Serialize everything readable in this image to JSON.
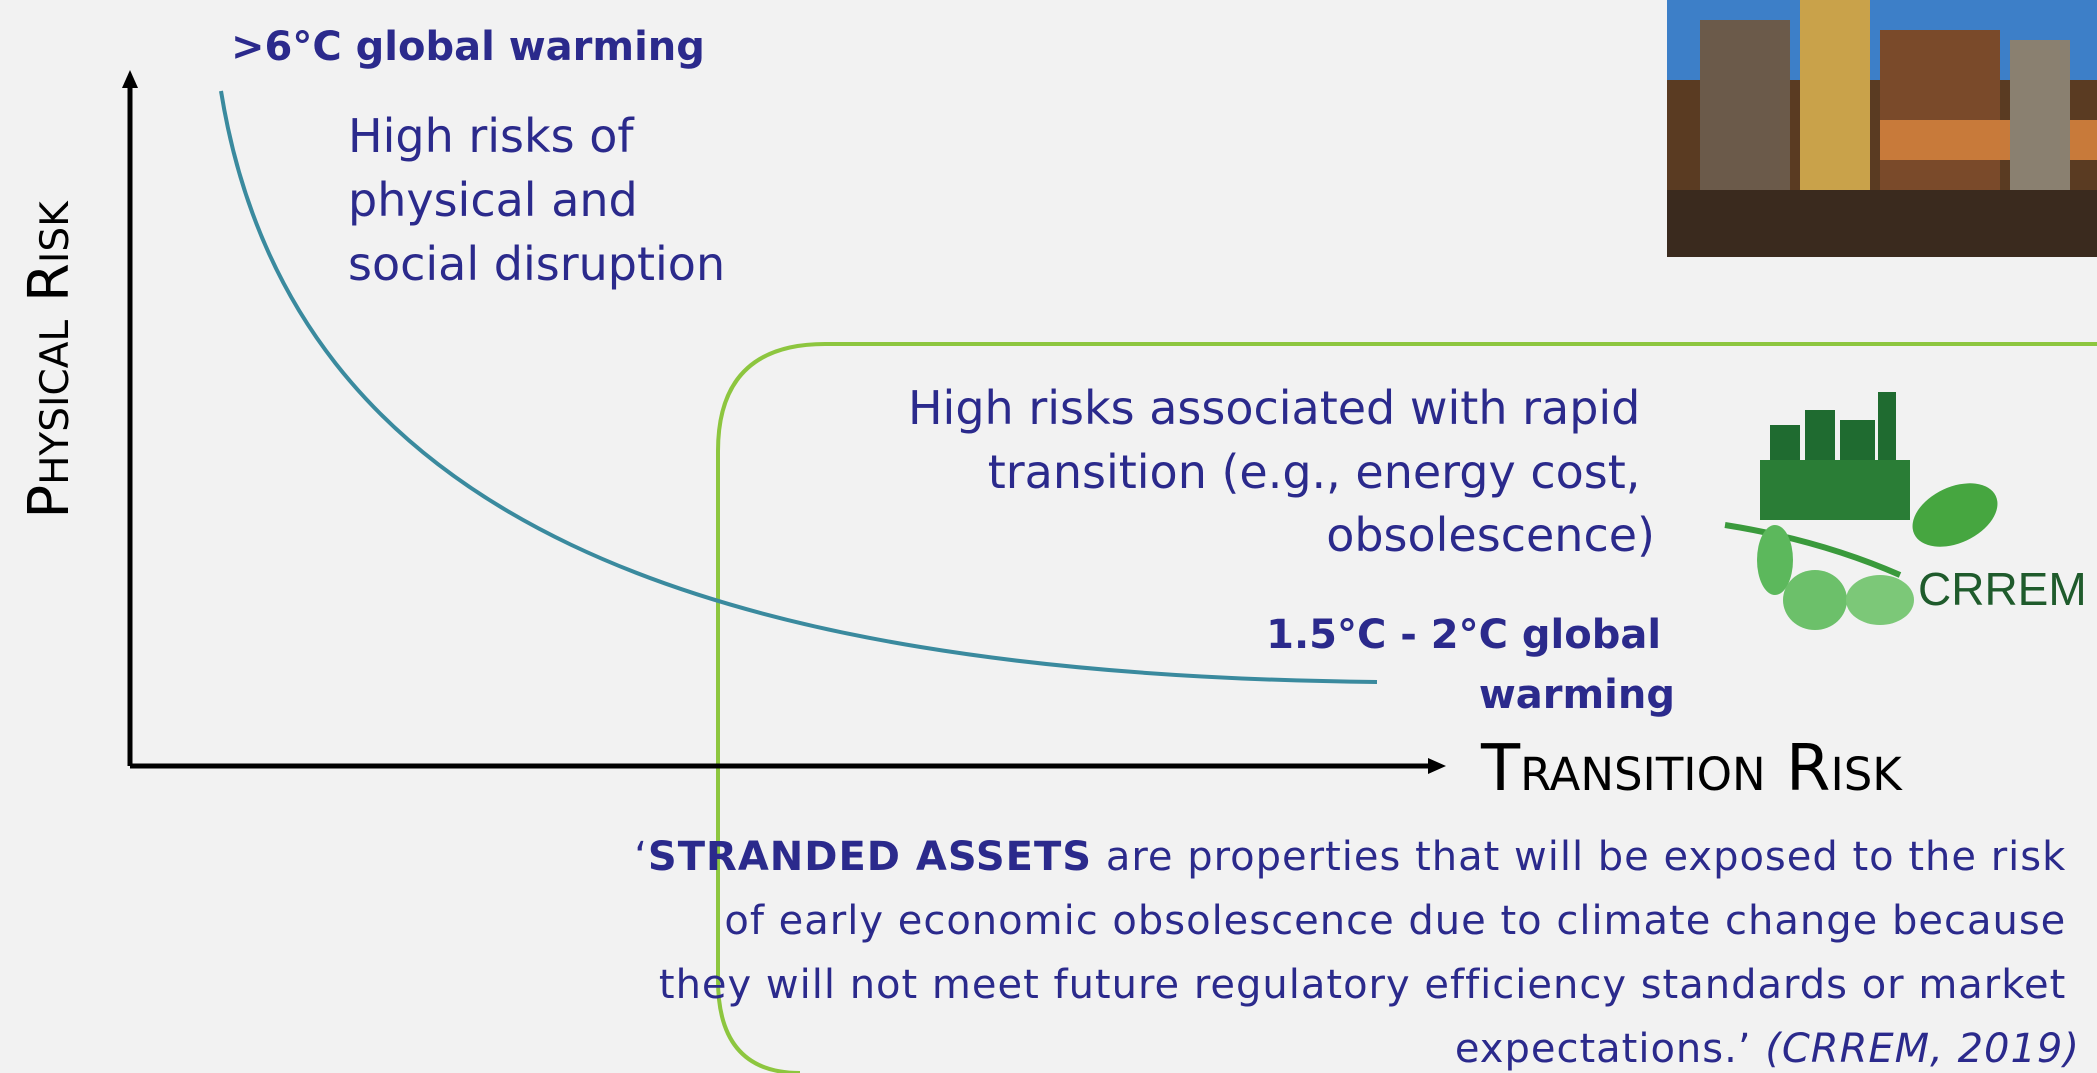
{
  "top_label": ">6°C global warming",
  "top_note": {
    "lines": [
      "High risks of",
      "physical and",
      "social disruption"
    ]
  },
  "mid_note": {
    "lines": [
      "High risks associated with rapid",
      "transition (e.g., energy cost,",
      "obsolescence)"
    ]
  },
  "bottom_label": {
    "lines": [
      "1.5°C  - 2°C global",
      "warming"
    ]
  },
  "y_axis_label": "Physical Risk",
  "x_axis_label": "Transition Risk",
  "logo": "CRREM",
  "quote": {
    "lead": "‘",
    "emphasis": "STRANDED ASSETS",
    "lines": [
      " are properties that will be exposed to the risk",
      "of early economic obsolescence due to climate change because",
      "they will not meet future regulatory efficiency standards or market",
      "expectations.’ "
    ],
    "citation": "(CRREM, 2019)"
  }
}
